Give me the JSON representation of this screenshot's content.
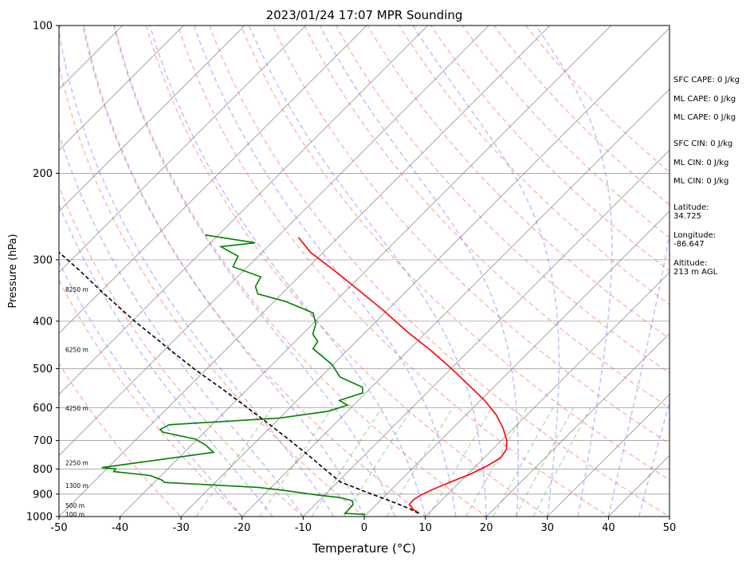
{
  "chart_data": {
    "type": "line",
    "subtype": "skew-t log-p sounding",
    "title": "2023/01/24 17:07 MPR Sounding",
    "xlabel": "Temperature (°C)",
    "ylabel": "Pressure (hPa)",
    "xlim": [
      -50,
      50
    ],
    "ylim": [
      1000,
      100
    ],
    "y_scale": "log",
    "x_ticks": [
      -50,
      -40,
      -30,
      -20,
      -10,
      0,
      10,
      20,
      30,
      40,
      50
    ],
    "y_ticks": [
      1000,
      900,
      800,
      700,
      600,
      500,
      400,
      300,
      200,
      100
    ],
    "grid": true,
    "height_labels": [
      {
        "text": "100 m",
        "p": 992
      },
      {
        "text": "500 m",
        "p": 953
      },
      {
        "text": "1300 m",
        "p": 868
      },
      {
        "text": "2250 m",
        "p": 780
      },
      {
        "text": "4250 m",
        "p": 604
      },
      {
        "text": "6250 m",
        "p": 459
      },
      {
        "text": "8250 m",
        "p": 346
      }
    ],
    "series": [
      {
        "color": "#ff0000",
        "style": "solid",
        "points": [
          [
            8.4,
            985
          ],
          [
            6.7,
            965
          ],
          [
            5.4,
            945
          ],
          [
            5.3,
            925
          ],
          [
            5.7,
            905
          ],
          [
            6.8,
            880
          ],
          [
            8.5,
            850
          ],
          [
            10.4,
            820
          ],
          [
            11.8,
            790
          ],
          [
            12.7,
            760
          ],
          [
            12.3,
            730
          ],
          [
            10.9,
            700
          ],
          [
            8.2,
            660
          ],
          [
            4.9,
            620
          ],
          [
            0.7,
            580
          ],
          [
            -4.4,
            540
          ],
          [
            -9.9,
            500
          ],
          [
            -16.1,
            460
          ],
          [
            -23.3,
            420
          ],
          [
            -30.7,
            380
          ],
          [
            -38.2,
            345
          ],
          [
            -45.3,
            315
          ],
          [
            -52.0,
            290
          ],
          [
            -56.5,
            270
          ]
        ]
      },
      {
        "color": "#008000",
        "style": "solid",
        "points": [
          [
            -0.2,
            990
          ],
          [
            -3.7,
            985
          ],
          [
            -3.7,
            965
          ],
          [
            -3.8,
            945
          ],
          [
            -4.6,
            928
          ],
          [
            -7.1,
            915
          ],
          [
            -11.8,
            902
          ],
          [
            -17.3,
            885
          ],
          [
            -22.1,
            872
          ],
          [
            -38.3,
            852
          ],
          [
            -39.2,
            842
          ],
          [
            -41.8,
            825
          ],
          [
            -48.4,
            810
          ],
          [
            -48.5,
            800
          ],
          [
            -51.0,
            795
          ],
          [
            -35.2,
            740
          ],
          [
            -37.7,
            715
          ],
          [
            -40.4,
            695
          ],
          [
            -46.8,
            673
          ],
          [
            -47.7,
            665
          ],
          [
            -47.0,
            650
          ],
          [
            -30.0,
            630
          ],
          [
            -23.1,
            610
          ],
          [
            -21.0,
            593
          ],
          [
            -23.1,
            580
          ],
          [
            -20.5,
            560
          ],
          [
            -21.5,
            545
          ],
          [
            -26.8,
            520
          ],
          [
            -30.2,
            490
          ],
          [
            -35.9,
            455
          ],
          [
            -36.3,
            440
          ],
          [
            -38.3,
            425
          ],
          [
            -39.5,
            405
          ],
          [
            -41.7,
            385
          ],
          [
            -48.0,
            365
          ],
          [
            -53.9,
            352
          ],
          [
            -55.5,
            340
          ],
          [
            -56.2,
            325
          ],
          [
            -62.4,
            310
          ],
          [
            -63.3,
            295
          ],
          [
            -67.7,
            282
          ],
          [
            -62.7,
            277
          ],
          [
            -72.2,
            267
          ]
        ]
      },
      {
        "color": "#000000",
        "style": "dashed",
        "points": [
          [
            8.4,
            985
          ],
          [
            5.9,
            962
          ],
          [
            3.1,
            940
          ],
          [
            0.1,
            918
          ],
          [
            -3.2,
            895
          ],
          [
            -6.4,
            872
          ],
          [
            -9.6,
            850
          ],
          [
            -14.3,
            800
          ],
          [
            -19.2,
            750
          ],
          [
            -24.6,
            700
          ],
          [
            -30.5,
            650
          ],
          [
            -37.0,
            600
          ],
          [
            -44.1,
            550
          ],
          [
            -52.1,
            500
          ],
          [
            -60.4,
            450
          ],
          [
            -69.6,
            400
          ],
          [
            -79.5,
            350
          ],
          [
            -87.0,
            315
          ],
          [
            -93.2,
            290
          ],
          [
            -96.3,
            280
          ],
          [
            -99.2,
            270
          ]
        ]
      }
    ]
  },
  "side_text": {
    "sfc_cape": "SFC CAPE: 0 J/kg",
    "ml_cape_1": "ML CAPE: 0 J/kg",
    "ml_cape_2": "ML CAPE: 0 J/kg",
    "sfc_cin": "SFC CIN: 0 J/kg",
    "ml_cin_1": "ML CIN: 0 J/kg",
    "ml_cin_2": "ML CIN: 0 J/kg",
    "latitude": "Latitude:\n34.725",
    "longitude": "Longitude:\n-86.647",
    "altitude": "Altitude:\n213 m AGL"
  },
  "colors": {
    "temperature": "#ff0000",
    "dewpoint": "#008000",
    "parcel": "#000000",
    "dry_adiabat": "#ff6060",
    "moist_adiabat": "#6060ff",
    "mixing_ratio": "#40a040",
    "isotherm": "#808080",
    "isobar": "#a0a0a0"
  }
}
